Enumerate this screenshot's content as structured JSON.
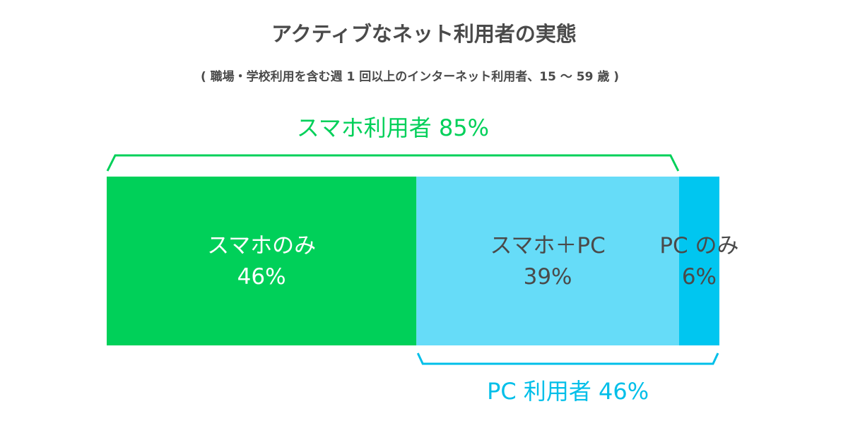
{
  "chart_data": {
    "type": "bar",
    "orientation": "horizontal-stacked",
    "title": "アクティブなネット利用者の実態",
    "subtitle": "( 職場・学校利用を含む週 1 回以上のインターネット利用者、15 ～ 59 歳 )",
    "categories": [
      "スマホのみ",
      "スマホ＋PC",
      "PC のみ"
    ],
    "values": [
      46,
      39,
      6
    ],
    "value_labels": [
      "46%",
      "39%",
      "6%"
    ],
    "colors": [
      "#00d059",
      "#66dcf8",
      "#00c6f0"
    ],
    "label_colors": [
      "#ffffff",
      "#4a4a4a",
      "#4a4a4a"
    ],
    "brackets": [
      {
        "label": "スマホ利用者 85%",
        "spans": [
          0,
          1
        ],
        "position": "top",
        "color": "#00d059"
      },
      {
        "label": "PC 利用者 46%",
        "spans": [
          1,
          2
        ],
        "position": "bottom",
        "color": "#00bfe9"
      }
    ],
    "grid": false
  }
}
